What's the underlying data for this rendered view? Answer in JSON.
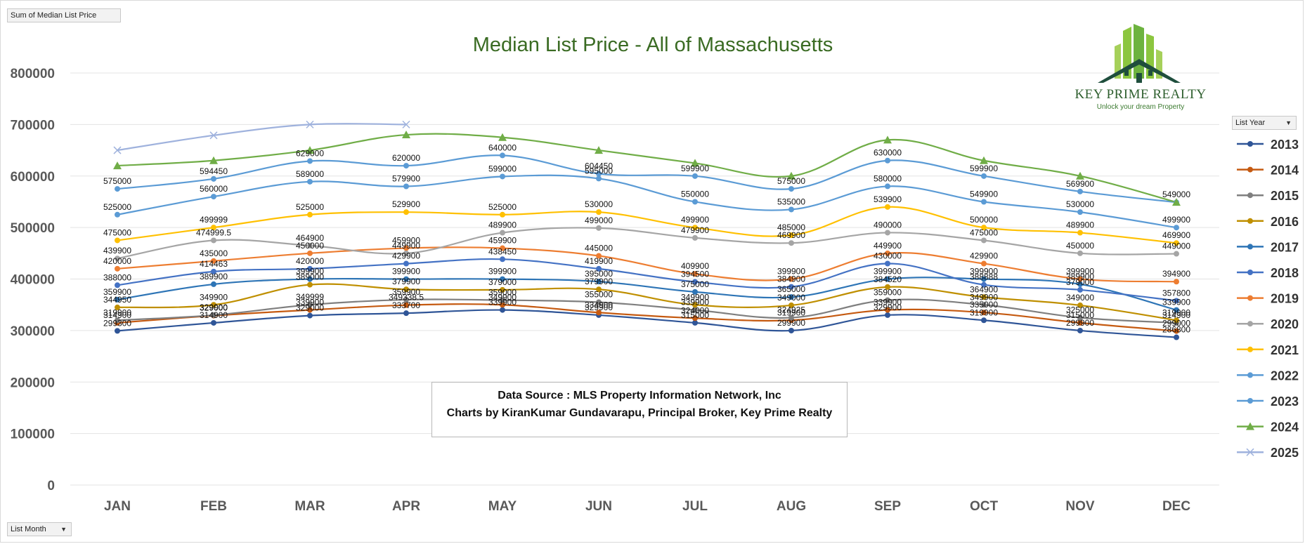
{
  "pivot": {
    "values_field": "Sum of Median List Price",
    "series_field": "List Year",
    "axis_field": "List Month"
  },
  "logo": {
    "name": "KEY PRIME REALTY",
    "tagline": "Unlock your dream Property"
  },
  "source_note": {
    "line1": "Data Source : MLS Property Information Network, Inc",
    "line2": "Charts by KiranKumar Gundavarapu, Principal Broker, Key Prime Realty"
  },
  "chart_data": {
    "type": "line",
    "title": "Median List Price - All of Massachusetts",
    "categories": [
      "JAN",
      "FEB",
      "MAR",
      "APR",
      "MAY",
      "JUN",
      "JUL",
      "AUG",
      "SEP",
      "OCT",
      "NOV",
      "DEC"
    ],
    "ylim": [
      0,
      800000
    ],
    "yticks": [
      0,
      100000,
      200000,
      300000,
      400000,
      500000,
      600000,
      700000,
      800000
    ],
    "grid": true,
    "legend_position": "right",
    "series": [
      {
        "name": "2013",
        "color": "#2f5597",
        "marker": "circle",
        "values": [
          299300,
          314900,
          329000,
          333700,
          339900,
          329900,
          315000,
          299900,
          329900,
          319900,
          299900,
          286800
        ],
        "labels": [
          "299300",
          "314900",
          "329000",
          "333700",
          "339900",
          "329900",
          "315000",
          "299900",
          "329900",
          "319900",
          "299900",
          "286800"
        ]
      },
      {
        "name": "2014",
        "color": "#c55a11",
        "marker": "circle",
        "values": [
          314900,
          329000,
          339900,
          349338.5,
          349900,
          334900,
          324000,
          319900,
          339900,
          335000,
          315000,
          299000
        ],
        "labels": [
          "314900",
          "329000",
          "339900",
          "349338.5",
          "349900",
          "334900",
          "324000",
          "319900",
          "339900",
          "335000",
          "315000",
          "299000"
        ]
      },
      {
        "name": "2015",
        "color": "#7f7f7f",
        "marker": "circle",
        "values": [
          319900,
          329900,
          349999,
          359900,
          359000,
          355000,
          339900,
          324925,
          359000,
          349900,
          325000,
          314900
        ],
        "labels": [
          "319900",
          "329900",
          "349999",
          "359900",
          "359000",
          "355000",
          "339900",
          "324925",
          "359000",
          "349900",
          "325000",
          "314900"
        ]
      },
      {
        "name": "2016",
        "color": "#bf8f00",
        "marker": "circle",
        "values": [
          344950,
          349900,
          389000,
          379900,
          379000,
          379900,
          349900,
          349000,
          384520,
          364900,
          349000,
          319900
        ],
        "labels": [
          "344950",
          "349900",
          "389000",
          "379900",
          "379000",
          "379900",
          "349900",
          "349000",
          "384520",
          "364900",
          "349000",
          "319900"
        ]
      },
      {
        "name": "2017",
        "color": "#2e75b6",
        "marker": "circle",
        "values": [
          359900,
          389900,
          399900,
          399900,
          399900,
          395000,
          375000,
          365000,
          399900,
          399900,
          389900,
          339900
        ],
        "labels": [
          "359900",
          "389900",
          "399900",
          "399900",
          "399900",
          "395000",
          "375000",
          "365000",
          "399900",
          "399900",
          "389900",
          "339900"
        ]
      },
      {
        "name": "2018",
        "color": "#4472c4",
        "marker": "circle",
        "values": [
          388000,
          414463,
          420000,
          429900,
          438450,
          419900,
          394500,
          384900,
          430000,
          388888,
          379000,
          357800
        ],
        "labels": [
          "388000",
          "414463",
          "420000",
          "429900",
          "438450",
          "419900",
          "394500",
          "384900",
          "430000",
          "388888",
          "379000",
          "357800"
        ]
      },
      {
        "name": "2019",
        "color": "#ed7d31",
        "marker": "circle",
        "values": [
          420000,
          435000,
          450000,
          459900,
          459900,
          445000,
          409900,
          399900,
          449900,
          429900,
          399900,
          394900
        ],
        "labels": [
          "420000",
          "435000",
          "450000",
          "459900",
          "459900",
          "445000",
          "409900",
          "399900",
          "449900",
          "429900",
          "399900",
          "394900"
        ]
      },
      {
        "name": "2020",
        "color": "#a5a5a5",
        "marker": "circle",
        "values": [
          439900,
          474999.5,
          464900,
          449900,
          489900,
          499000,
          479900,
          469900,
          490000,
          475000,
          450000,
          449000
        ],
        "labels": [
          "439900",
          "474999.5",
          "464900",
          "449900",
          "489900",
          "499000",
          "479900",
          "469900",
          "490000",
          "475000",
          "450000",
          "449000"
        ]
      },
      {
        "name": "2021",
        "color": "#ffc000",
        "marker": "circle",
        "values": [
          475000,
          499999,
          525000,
          529900,
          525000,
          530000,
          499900,
          485000,
          539900,
          500000,
          489900,
          469900
        ],
        "labels": [
          "475000",
          "499999",
          "525000",
          "529900",
          "525000",
          "530000",
          "499900",
          "485000",
          "539900",
          "500000",
          "489900",
          "469900"
        ]
      },
      {
        "name": "2022",
        "color": "#5b9bd5",
        "marker": "circle",
        "values": [
          525000,
          560000,
          589000,
          579900,
          599000,
          595000,
          550000,
          535000,
          580000,
          549900,
          530000,
          499900
        ],
        "labels": [
          "525000",
          "560000",
          "589000",
          "579900",
          "599000",
          "595000",
          "550000",
          "535000",
          "580000",
          "549900",
          "530000",
          "499900"
        ]
      },
      {
        "name": "2023",
        "color": "#5b9bd5",
        "marker": "circle",
        "values": [
          575000,
          594450,
          629000,
          620000,
          640000,
          604450,
          599900,
          575000,
          630000,
          599900,
          569900,
          549000
        ],
        "labels": [
          "575000",
          "594450",
          "629000",
          "620000",
          "640000",
          "604450",
          "599900",
          "575000",
          "630000",
          "599900",
          "569900",
          "549000"
        ]
      },
      {
        "name": "2024",
        "color": "#70ad47",
        "marker": "triangle",
        "values": [
          620000,
          630000,
          650000,
          680000,
          675000,
          650000,
          625000,
          600000,
          670000,
          630000,
          600000,
          549000
        ],
        "labels": [
          "",
          "",
          "",
          "",
          "",
          "",
          "",
          "",
          "",
          "",
          "",
          ""
        ]
      },
      {
        "name": "2025",
        "color": "#9fb2dd",
        "marker": "cross",
        "values": [
          650000,
          679000,
          700000,
          700000,
          null,
          null,
          null,
          null,
          null,
          null,
          null,
          null
        ],
        "labels": [
          "",
          "",
          "",
          "",
          "",
          "",
          "",
          "",
          "",
          "",
          "",
          ""
        ]
      }
    ]
  }
}
